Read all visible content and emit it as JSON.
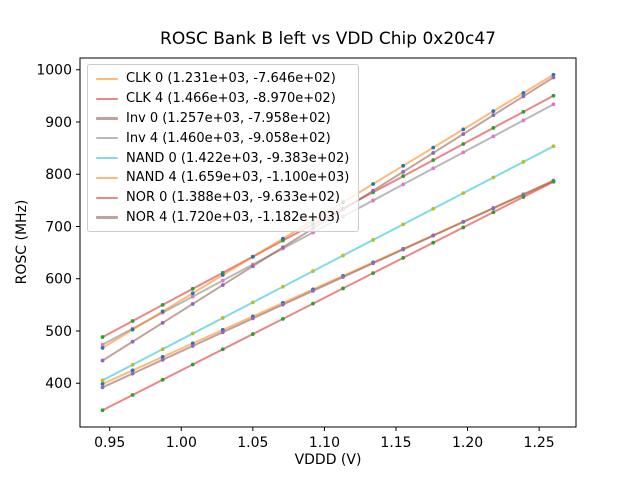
{
  "window": {
    "background": "#ffffff"
  },
  "chart_data": {
    "type": "scatter-line",
    "title": "ROSC Bank B left vs VDD Chip 0x20c47",
    "xlabel": "VDDD (V)",
    "ylabel": "ROSC (MHz)",
    "x_axis": {
      "start": 0.945,
      "step": 0.021,
      "n_points": 16,
      "tick_values": [
        0.95,
        1.0,
        1.05,
        1.1,
        1.15,
        1.2,
        1.25
      ],
      "tick_labels": [
        "0.95",
        "1.00",
        "1.05",
        "1.10",
        "1.15",
        "1.20",
        "1.25"
      ]
    },
    "y_axis": {
      "tick_values": [
        400,
        500,
        600,
        700,
        800,
        900,
        1000
      ],
      "tick_labels": [
        "400",
        "500",
        "600",
        "700",
        "800",
        "900",
        "1000"
      ]
    },
    "margin_frac": 0.05,
    "line_alpha": 0.55,
    "grid": false,
    "legend_position": "upper-left",
    "series": [
      {
        "name": "CLK 0",
        "legend_label": "CLK 0 (1.231e+03, -7.646e+02)",
        "slope": 1231,
        "intercept": -764.6,
        "line_color": "#ff7f0e",
        "marker_color": "#1f77b4"
      },
      {
        "name": "CLK 4",
        "legend_label": "CLK 4 (1.466e+03, -8.970e+02)",
        "slope": 1466,
        "intercept": -897.0,
        "line_color": "#d62728",
        "marker_color": "#2ca02c"
      },
      {
        "name": "Inv 0",
        "legend_label": "Inv 0 (1.257e+03, -7.958e+02)",
        "slope": 1257,
        "intercept": -795.8,
        "line_color": "#8c564b",
        "marker_color": "#9467bd"
      },
      {
        "name": "Inv 4",
        "legend_label": "Inv 4 (1.460e+03, -9.058e+02)",
        "slope": 1460,
        "intercept": -905.8,
        "line_color": "#7f7f7f",
        "marker_color": "#e377c2"
      },
      {
        "name": "NAND 0",
        "legend_label": "NAND 0 (1.422e+03, -9.383e+02)",
        "slope": 1422,
        "intercept": -938.3,
        "line_color": "#17becf",
        "marker_color": "#bcbd22"
      },
      {
        "name": "NAND 4",
        "legend_label": "NAND 4 (1.659e+03, -1.100e+03)",
        "slope": 1659,
        "intercept": -1100.0,
        "line_color": "#ff7f0e",
        "marker_color": "#1f77b4"
      },
      {
        "name": "NOR 0",
        "legend_label": "NOR 0 (1.388e+03, -9.633e+02)",
        "slope": 1388,
        "intercept": -963.3,
        "line_color": "#d62728",
        "marker_color": "#2ca02c"
      },
      {
        "name": "NOR 4",
        "legend_label": "NOR 4 (1.720e+03, -1.182e+03)",
        "slope": 1720,
        "intercept": -1182.0,
        "line_color": "#8c564b",
        "marker_color": "#9467bd"
      }
    ]
  }
}
